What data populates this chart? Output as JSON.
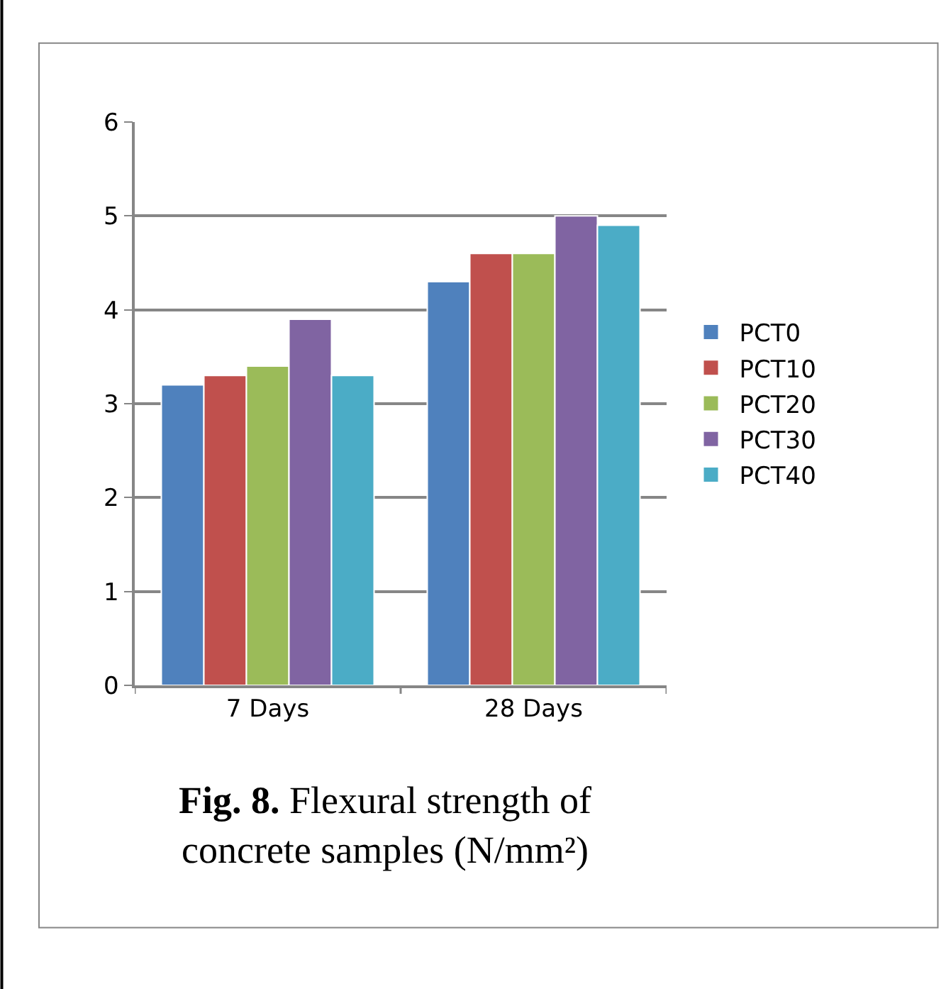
{
  "chart_data": {
    "type": "bar",
    "categories": [
      "7 Days",
      "28 Days"
    ],
    "series": [
      {
        "name": "PCT0",
        "color": "#4f81bd",
        "values": [
          3.2,
          4.3
        ]
      },
      {
        "name": "PCT10",
        "color": "#c0504d",
        "values": [
          3.3,
          4.6
        ]
      },
      {
        "name": "PCT20",
        "color": "#9bbb59",
        "values": [
          3.4,
          4.6
        ]
      },
      {
        "name": "PCT30",
        "color": "#8064a2",
        "values": [
          3.9,
          5.0
        ]
      },
      {
        "name": "PCT40",
        "color": "#4bacc6",
        "values": [
          3.3,
          4.9
        ]
      }
    ],
    "ylim": [
      0,
      6
    ],
    "yticks": [
      0,
      1,
      2,
      3,
      4,
      5,
      6
    ],
    "grid": "y",
    "legend": "right",
    "annotations": [
      "Fig. 8.",
      "Flexural strength of",
      "concrete samples (N/mm²)"
    ]
  }
}
